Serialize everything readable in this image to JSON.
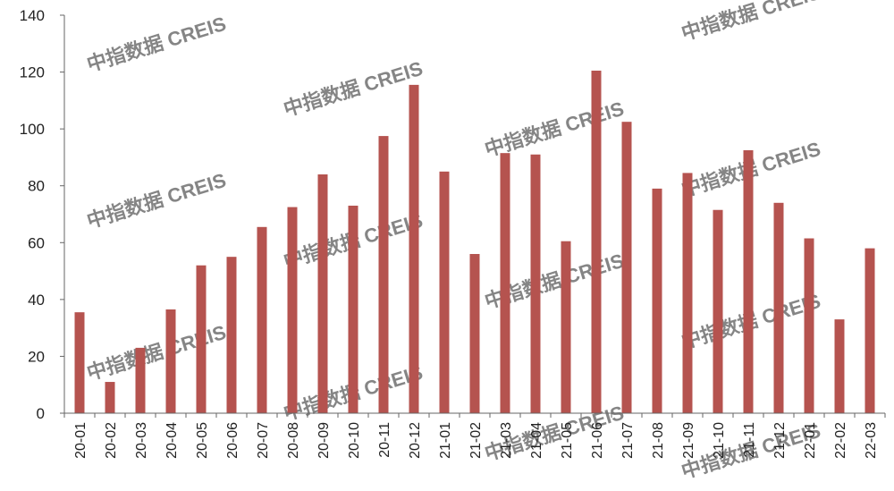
{
  "chart_data": {
    "type": "bar",
    "title": "",
    "xlabel": "",
    "ylabel": "",
    "ylim": [
      0,
      140
    ],
    "yticks": [
      0,
      20,
      40,
      60,
      80,
      100,
      120,
      140
    ],
    "grid": false,
    "legend": "none",
    "bar_color": "#b5534f",
    "categories": [
      "20-01",
      "20-02",
      "20-03",
      "20-04",
      "20-05",
      "20-06",
      "20-07",
      "20-08",
      "20-09",
      "20-10",
      "20-11",
      "20-12",
      "21-01",
      "21-02",
      "21-03",
      "21-04",
      "21-05",
      "21-06",
      "21-07",
      "21-08",
      "21-09",
      "21-10",
      "21-11",
      "21-12",
      "22-01",
      "22-02",
      "22-03"
    ],
    "values": [
      35.5,
      11,
      23,
      36.5,
      52,
      55,
      65.5,
      72.5,
      84,
      73,
      97.5,
      115.5,
      85,
      56,
      91.5,
      91,
      60.5,
      120.5,
      102.5,
      79,
      84.5,
      71.5,
      92.5,
      74,
      61.5,
      33,
      58
    ]
  },
  "watermark": "中指数据 CREIS"
}
